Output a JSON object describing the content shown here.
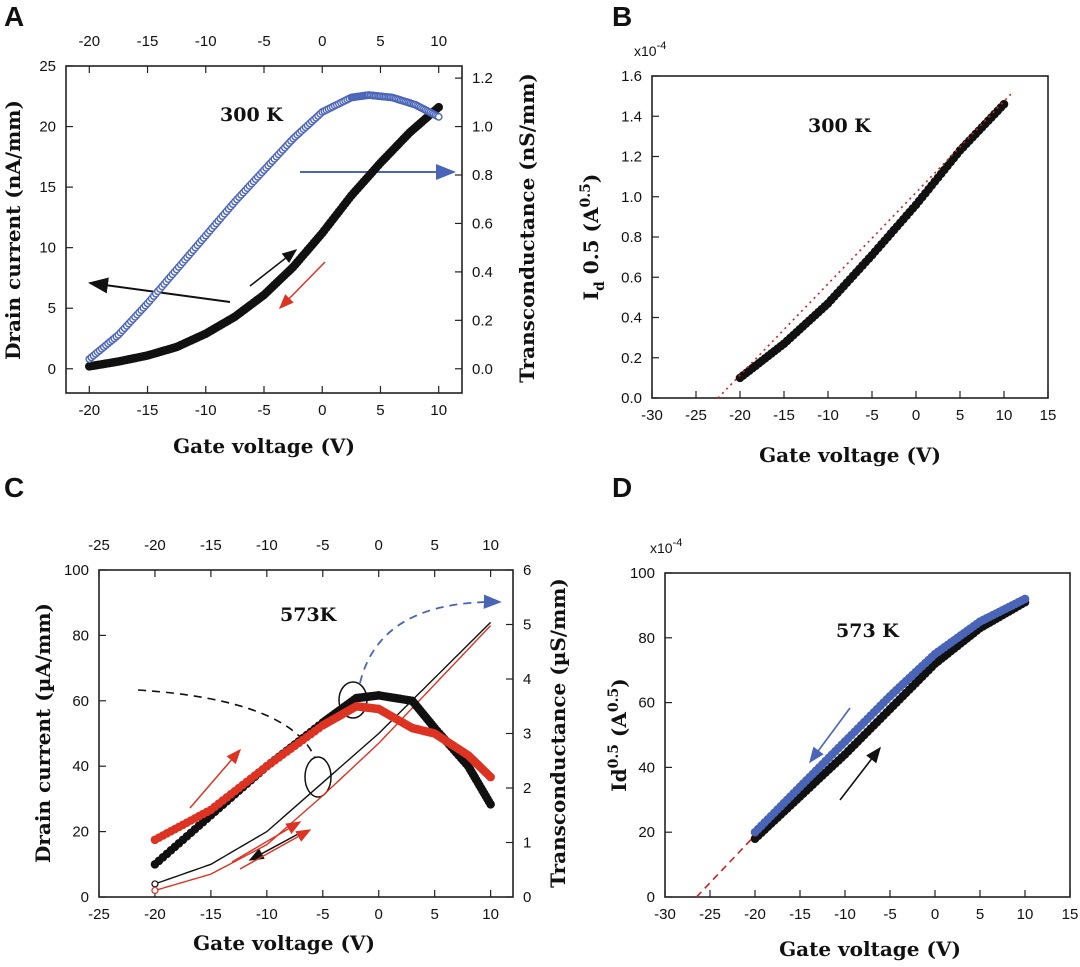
{
  "figure": {
    "panels": [
      "A",
      "B",
      "C",
      "D"
    ],
    "colors": {
      "black": "#111111",
      "blue": "#4a64b8",
      "red": "#dd3322",
      "fit": "#cc2222"
    }
  },
  "chart_data": [
    {
      "id": "A",
      "type": "line",
      "annotation": "300 K",
      "xlabel": "Gate voltage (V)",
      "ylabel": "Drain current (nA/mm)",
      "y2label": "Transconductance (nS/mm)",
      "xlim": [
        -22,
        12
      ],
      "ylim": [
        -2,
        25
      ],
      "y2lim": [
        -0.1,
        1.25
      ],
      "xticks": [
        -20,
        -15,
        -10,
        -5,
        0,
        5,
        10
      ],
      "yticks": [
        0,
        5,
        10,
        15,
        20,
        25
      ],
      "y2ticks": [
        "0.0",
        "0.2",
        "0.4",
        "0.6",
        "0.8",
        "1.0",
        "1.2"
      ],
      "top_xticks": [
        -20,
        -15,
        -10,
        -5,
        0,
        5,
        10
      ],
      "series": [
        {
          "name": "Drain current",
          "axis": "left",
          "color": "#111111",
          "x": [
            -20,
            -17.5,
            -15,
            -12.5,
            -10,
            -7.5,
            -5,
            -2.5,
            0,
            2.5,
            5,
            7.5,
            10
          ],
          "y": [
            0.2,
            0.6,
            1.1,
            1.8,
            2.9,
            4.3,
            6.1,
            8.4,
            11.2,
            14.3,
            17.0,
            19.5,
            21.6
          ]
        },
        {
          "name": "Transconductance",
          "axis": "right",
          "color": "#4a64b8",
          "x": [
            -20,
            -17.5,
            -15,
            -12.5,
            -10,
            -7.5,
            -5,
            -2.5,
            0,
            2.5,
            4,
            6,
            8,
            10
          ],
          "y": [
            0.04,
            0.14,
            0.27,
            0.41,
            0.55,
            0.69,
            0.82,
            0.95,
            1.06,
            1.12,
            1.13,
            1.12,
            1.09,
            1.04
          ]
        }
      ]
    },
    {
      "id": "B",
      "type": "line",
      "annotation": "300 K",
      "multiplier": "x10",
      "multiplier_exp": "-4",
      "xlabel": "Gate voltage (V)",
      "ylabel": {
        "main": "I",
        "sub": "d",
        "mid": " 0.5 (A",
        "sup": "0.5",
        "end": ")"
      },
      "xlim": [
        -30,
        15
      ],
      "ylim": [
        0,
        1.6
      ],
      "xticks": [
        -30,
        -25,
        -20,
        -15,
        -10,
        -5,
        0,
        5,
        10,
        15
      ],
      "yticks": [
        "0.0",
        "0.2",
        "0.4",
        "0.6",
        "0.8",
        "1.0",
        "1.2",
        "1.4",
        "1.6"
      ],
      "series": [
        {
          "name": "sqrt(Id)",
          "color": "#111111",
          "x": [
            -20,
            -15,
            -10,
            -5,
            0,
            5,
            10
          ],
          "y": [
            0.1,
            0.27,
            0.47,
            0.71,
            0.96,
            1.23,
            1.46
          ]
        },
        {
          "name": "Linear fit",
          "color": "#cc2222",
          "style": "dotted",
          "x": [
            -22.5,
            11
          ],
          "y": [
            0.0,
            1.52
          ]
        }
      ]
    },
    {
      "id": "C",
      "type": "line",
      "annotation": "573K",
      "xlabel": "Gate voltage (V)",
      "ylabel": "Drain current (µA/mm)",
      "y2label": "Transconductance (µS/mm)",
      "xlim": [
        -25,
        12
      ],
      "ylim": [
        0,
        100
      ],
      "y2lim": [
        0,
        6
      ],
      "xticks": [
        -25,
        -20,
        -15,
        -10,
        -5,
        0,
        5,
        10
      ],
      "yticks": [
        0,
        20,
        40,
        60,
        80,
        100
      ],
      "y2ticks": [
        0,
        1,
        2,
        3,
        4,
        5,
        6
      ],
      "top_xticks": [
        -25,
        -20,
        -15,
        -10,
        -5,
        0,
        5,
        10
      ],
      "series": [
        {
          "name": "Drain current forward",
          "axis": "left",
          "color": "#111111",
          "x": [
            -20,
            -15,
            -10,
            -5,
            0,
            5,
            10
          ],
          "y": [
            4,
            10,
            20,
            35,
            50,
            67,
            84
          ]
        },
        {
          "name": "Drain current reverse",
          "axis": "left",
          "color": "#dd3322",
          "x": [
            -20,
            -15,
            -10,
            -5,
            0,
            5,
            10
          ],
          "y": [
            2,
            7,
            16,
            31,
            47,
            65,
            83
          ]
        },
        {
          "name": "Transconductance forward",
          "axis": "right",
          "color": "#111111",
          "x": [
            -20,
            -15,
            -10,
            -5,
            -2,
            0,
            3,
            5,
            8,
            10
          ],
          "y": [
            0.6,
            1.5,
            2.4,
            3.2,
            3.65,
            3.7,
            3.6,
            3.1,
            2.4,
            1.7
          ]
        },
        {
          "name": "Transconductance reverse",
          "axis": "right",
          "color": "#dd3322",
          "x": [
            -20,
            -15,
            -10,
            -5,
            -2,
            0,
            3,
            5,
            8,
            10
          ],
          "y": [
            1.05,
            1.6,
            2.4,
            3.15,
            3.5,
            3.45,
            3.1,
            3.0,
            2.6,
            2.2
          ]
        }
      ]
    },
    {
      "id": "D",
      "type": "line",
      "annotation": "573 K",
      "multiplier": "x10",
      "multiplier_exp": "-4",
      "xlabel": "Gate voltage (V)",
      "ylabel": {
        "main": "Id",
        "sup1": "0.5",
        "mid": " (A",
        "sup": "0.5",
        "end": ")"
      },
      "xlim": [
        -30,
        15
      ],
      "ylim": [
        0,
        100
      ],
      "xticks": [
        -30,
        -25,
        -20,
        -15,
        -10,
        -5,
        0,
        5,
        10,
        15
      ],
      "yticks": [
        0,
        20,
        40,
        60,
        80,
        100
      ],
      "series": [
        {
          "name": "forward",
          "color": "#111111",
          "x": [
            -20,
            -15,
            -10,
            -5,
            0,
            5,
            10
          ],
          "y": [
            18,
            31,
            44,
            58,
            72,
            83,
            91
          ]
        },
        {
          "name": "reverse",
          "color": "#4a64b8",
          "x": [
            -20,
            -15,
            -10,
            -5,
            0,
            5,
            10
          ],
          "y": [
            20,
            34,
            48,
            62,
            75,
            85,
            92
          ]
        },
        {
          "name": "fit",
          "color": "#cc2222",
          "style": "dashed",
          "x": [
            -26.5,
            -20
          ],
          "y": [
            0,
            19
          ]
        }
      ]
    }
  ]
}
